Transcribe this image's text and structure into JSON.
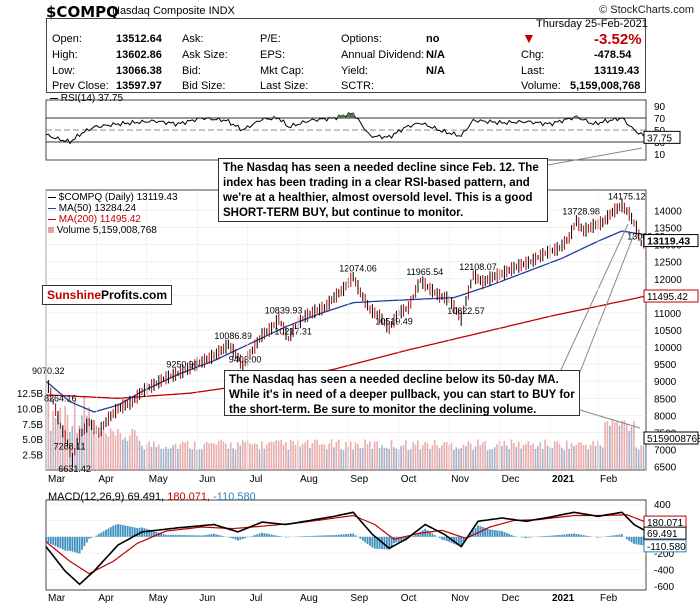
{
  "header": {
    "symbol": "$COMPQ",
    "name": "Nasdaq Composite  INDX",
    "credit": "© StockCharts.com",
    "date": "Thursday  25-Feb-2021"
  },
  "quote": {
    "open_label": "Open:",
    "open": "13512.64",
    "high_label": "High:",
    "high": "13602.86",
    "low_label": "Low:",
    "low": "13066.38",
    "prev_label": "Prev Close:",
    "prev": "13597.97",
    "ask_label": "Ask:",
    "asksize_label": "Ask Size:",
    "bid_label": "Bid:",
    "bidsize_label": "Bid Size:",
    "pe_label": "P/E:",
    "eps_label": "EPS:",
    "mktcap_label": "Mkt Cap:",
    "lastsize_label": "Last Size:",
    "options_label": "Options:",
    "options": "no",
    "div_label": "Annual Dividend:",
    "div": "N/A",
    "yield_label": "Yield:",
    "yield": "N/A",
    "sctr_label": "SCTR:",
    "chg_pct": "-3.52%",
    "chg_label": "Chg:",
    "chg": "-478.54",
    "last_label": "Last:",
    "last": "13119.43",
    "volume_label": "Volume:",
    "volume": "5,159,008,768"
  },
  "colors": {
    "price": "#000000",
    "ma50": "#1f3f9f",
    "ma200": "#c00000",
    "volume": "#e8a0a0",
    "rsi_fill": "#4a7a4a",
    "macd_hist": "#3d8fbf"
  },
  "rsi": {
    "legend": "RSI(14) 37.75",
    "last_label": "37.75",
    "ticks": [
      "90",
      "70",
      "50",
      "30",
      "10"
    ]
  },
  "price_legend": {
    "price": "$COMPQ (Daily) 13119.43",
    "ma50": "MA(50) 13284.24",
    "ma200": "MA(200) 11495.42",
    "volume": "Volume 5,159,008,768"
  },
  "annotations": {
    "top": "The Nasdaq has seen a needed decline since Feb. 12. The index has been trading in a clear RSI-based pattern, and we're at a healthier, almost oversold level. This is a good SHORT-TERM BUY, but continue to monitor.",
    "bottom": "The Nasdaq has seen a needed decline below its 50-day MA. While it's in need of a deeper pullback, you can start to BUY for the short-term. Be sure to monitor the declining volume."
  },
  "brand": {
    "part1": "Sunshine",
    "part2": "Profits.com"
  },
  "macd": {
    "legend_prefix": "MACD(12,26,9) 69.491,",
    "legend_signal": "180.071,",
    "legend_hist": "-110.580",
    "ticks": [
      "400",
      "200",
      "0",
      "-200",
      "-400",
      "-600"
    ],
    "labels": [
      "180.071",
      "69.491",
      "-110.580"
    ]
  },
  "chart_data": {
    "type": "line",
    "title": "$COMPQ Nasdaq Composite INDX",
    "x_months": [
      "Mar",
      "Apr",
      "May",
      "Jun",
      "Jul",
      "Aug",
      "Sep",
      "Oct",
      "Nov",
      "Dec",
      "2021",
      "Feb"
    ],
    "price_axis": {
      "ticks": [
        6500,
        7000,
        7500,
        8000,
        8500,
        9000,
        9500,
        10000,
        10500,
        11000,
        11500,
        12000,
        12500,
        13000,
        13500,
        14000
      ],
      "ylim": [
        6400,
        14600
      ]
    },
    "volume_axis": {
      "ticks": [
        "2.5B",
        "5.0B",
        "7.5B",
        "10.0B",
        "12.5B"
      ]
    },
    "annotated_points": [
      {
        "label": "9070.32",
        "x": 0,
        "y": 9070.32
      },
      {
        "label": "8264.16",
        "x": 5,
        "y": 8264.16
      },
      {
        "label": "7288.11",
        "x": 9,
        "y": 7288.11
      },
      {
        "label": "6631.42",
        "x": 11,
        "y": 6631.42
      },
      {
        "label": "9250.96",
        "x": 56,
        "y": 9250.96
      },
      {
        "label": "10086.89",
        "x": 76,
        "y": 10086.89
      },
      {
        "label": "9403.00",
        "x": 82,
        "y": 9403.0
      },
      {
        "label": "10839.93",
        "x": 97,
        "y": 10839.93
      },
      {
        "label": "10217.31",
        "x": 101,
        "y": 10217.31
      },
      {
        "label": "12074.06",
        "x": 128,
        "y": 12074.06
      },
      {
        "label": "10519.49",
        "x": 143,
        "y": 10519.49
      },
      {
        "label": "11965.54",
        "x": 156,
        "y": 11965.54
      },
      {
        "label": "10822.57",
        "x": 173,
        "y": 10822.57
      },
      {
        "label": "12108.07",
        "x": 178,
        "y": 12108.07
      },
      {
        "label": "13728.98",
        "x": 221,
        "y": 13728.98
      },
      {
        "label": "14175.12",
        "x": 240,
        "y": 14175.12
      },
      {
        "label": "13003.98",
        "x": 248,
        "y": 13003.98
      }
    ],
    "right_labels": [
      "13119.43",
      "11495.42",
      "5159008768"
    ],
    "price_key": [
      [
        0,
        9070
      ],
      [
        3,
        8400
      ],
      [
        6,
        7700
      ],
      [
        9,
        7200
      ],
      [
        11,
        6700
      ],
      [
        14,
        7400
      ],
      [
        18,
        7800
      ],
      [
        22,
        7500
      ],
      [
        26,
        7900
      ],
      [
        30,
        8200
      ],
      [
        36,
        8400
      ],
      [
        40,
        8700
      ],
      [
        45,
        8900
      ],
      [
        50,
        9100
      ],
      [
        56,
        9250
      ],
      [
        60,
        9400
      ],
      [
        66,
        9600
      ],
      [
        70,
        9750
      ],
      [
        74,
        9950
      ],
      [
        76,
        10080
      ],
      [
        80,
        9700
      ],
      [
        82,
        9450
      ],
      [
        86,
        9900
      ],
      [
        90,
        10350
      ],
      [
        94,
        10550
      ],
      [
        97,
        10830
      ],
      [
        101,
        10250
      ],
      [
        104,
        10600
      ],
      [
        108,
        10900
      ],
      [
        112,
        11050
      ],
      [
        116,
        11150
      ],
      [
        120,
        11450
      ],
      [
        124,
        11700
      ],
      [
        128,
        12060
      ],
      [
        131,
        11600
      ],
      [
        135,
        11100
      ],
      [
        139,
        10900
      ],
      [
        143,
        10550
      ],
      [
        147,
        11000
      ],
      [
        151,
        11150
      ],
      [
        156,
        11950
      ],
      [
        160,
        11700
      ],
      [
        164,
        11500
      ],
      [
        168,
        11400
      ],
      [
        173,
        10830
      ],
      [
        176,
        11600
      ],
      [
        178,
        12100
      ],
      [
        182,
        11900
      ],
      [
        186,
        12050
      ],
      [
        190,
        12150
      ],
      [
        196,
        12350
      ],
      [
        202,
        12500
      ],
      [
        208,
        12750
      ],
      [
        214,
        12900
      ],
      [
        218,
        13200
      ],
      [
        221,
        13700
      ],
      [
        224,
        13400
      ],
      [
        228,
        13550
      ],
      [
        232,
        13650
      ],
      [
        236,
        13950
      ],
      [
        240,
        14150
      ],
      [
        243,
        13900
      ],
      [
        246,
        13500
      ],
      [
        248,
        13050
      ],
      [
        250,
        13120
      ]
    ],
    "ma50_key": [
      [
        0,
        9000
      ],
      [
        10,
        8400
      ],
      [
        20,
        8100
      ],
      [
        30,
        8300
      ],
      [
        40,
        8700
      ],
      [
        55,
        9200
      ],
      [
        70,
        9600
      ],
      [
        85,
        10100
      ],
      [
        100,
        10600
      ],
      [
        115,
        11000
      ],
      [
        128,
        11300
      ],
      [
        140,
        11350
      ],
      [
        155,
        11400
      ],
      [
        170,
        11450
      ],
      [
        185,
        11800
      ],
      [
        200,
        12200
      ],
      [
        215,
        12600
      ],
      [
        230,
        13100
      ],
      [
        240,
        13400
      ],
      [
        250,
        13284
      ]
    ],
    "ma200_key": [
      [
        0,
        8600
      ],
      [
        30,
        8500
      ],
      [
        60,
        8650
      ],
      [
        90,
        8950
      ],
      [
        120,
        9350
      ],
      [
        150,
        9900
      ],
      [
        180,
        10400
      ],
      [
        210,
        10900
      ],
      [
        250,
        11495
      ]
    ],
    "rsi_key": [
      [
        0,
        42
      ],
      [
        5,
        35
      ],
      [
        10,
        30
      ],
      [
        15,
        45
      ],
      [
        20,
        55
      ],
      [
        30,
        60
      ],
      [
        45,
        65
      ],
      [
        55,
        60
      ],
      [
        65,
        70
      ],
      [
        75,
        66
      ],
      [
        82,
        50
      ],
      [
        90,
        68
      ],
      [
        97,
        70
      ],
      [
        101,
        55
      ],
      [
        110,
        66
      ],
      [
        120,
        70
      ],
      [
        128,
        78
      ],
      [
        135,
        40
      ],
      [
        143,
        38
      ],
      [
        150,
        55
      ],
      [
        156,
        62
      ],
      [
        165,
        48
      ],
      [
        173,
        40
      ],
      [
        178,
        66
      ],
      [
        190,
        62
      ],
      [
        200,
        64
      ],
      [
        210,
        60
      ],
      [
        221,
        72
      ],
      [
        228,
        60
      ],
      [
        235,
        66
      ],
      [
        240,
        70
      ],
      [
        245,
        50
      ],
      [
        250,
        37.75
      ]
    ],
    "macd_key": [
      [
        0,
        -120
      ],
      [
        8,
        -420
      ],
      [
        14,
        -580
      ],
      [
        20,
        -420
      ],
      [
        30,
        -100
      ],
      [
        40,
        60
      ],
      [
        55,
        110
      ],
      [
        70,
        150
      ],
      [
        80,
        60
      ],
      [
        90,
        180
      ],
      [
        100,
        150
      ],
      [
        110,
        200
      ],
      [
        120,
        250
      ],
      [
        128,
        300
      ],
      [
        136,
        30
      ],
      [
        143,
        -140
      ],
      [
        150,
        -30
      ],
      [
        158,
        150
      ],
      [
        166,
        30
      ],
      [
        173,
        -120
      ],
      [
        180,
        190
      ],
      [
        190,
        230
      ],
      [
        200,
        190
      ],
      [
        210,
        240
      ],
      [
        220,
        300
      ],
      [
        230,
        250
      ],
      [
        240,
        300
      ],
      [
        245,
        150
      ],
      [
        250,
        69.5
      ]
    ],
    "signal_key": [
      [
        0,
        -60
      ],
      [
        10,
        -300
      ],
      [
        18,
        -450
      ],
      [
        28,
        -300
      ],
      [
        38,
        -80
      ],
      [
        50,
        70
      ],
      [
        65,
        120
      ],
      [
        78,
        100
      ],
      [
        90,
        130
      ],
      [
        105,
        170
      ],
      [
        118,
        220
      ],
      [
        128,
        260
      ],
      [
        137,
        150
      ],
      [
        145,
        -30
      ],
      [
        155,
        40
      ],
      [
        165,
        80
      ],
      [
        175,
        -20
      ],
      [
        185,
        120
      ],
      [
        195,
        200
      ],
      [
        205,
        210
      ],
      [
        220,
        260
      ],
      [
        232,
        260
      ],
      [
        242,
        270
      ],
      [
        250,
        180
      ]
    ]
  }
}
